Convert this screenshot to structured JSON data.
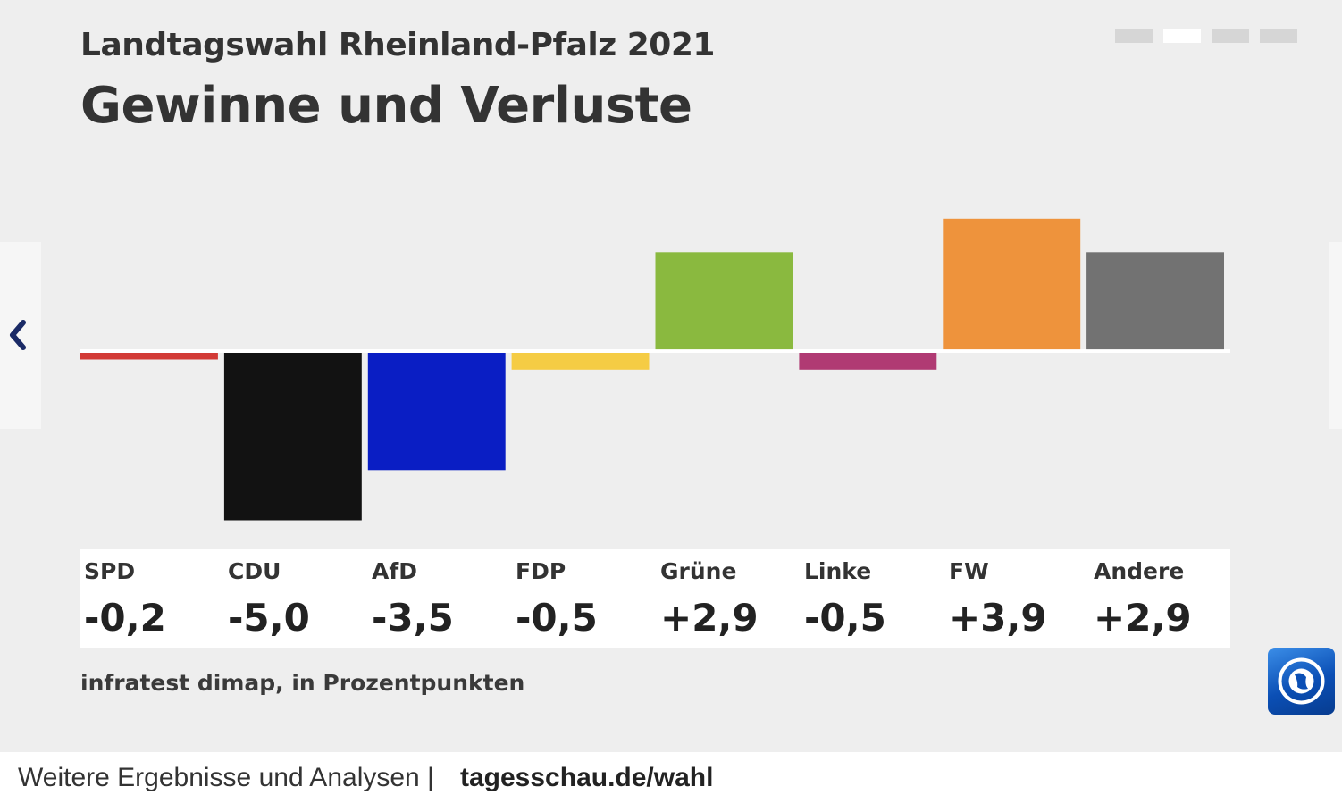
{
  "header": {
    "supertitle": "Landtagswahl Rheinland-Pfalz 2021",
    "title": "Gewinne und Verluste"
  },
  "pager": {
    "count": 4,
    "active_index": 1
  },
  "chart_data": {
    "type": "bar",
    "categories": [
      "SPD",
      "CDU",
      "AfD",
      "FDP",
      "Grüne",
      "Linke",
      "FW",
      "Andere"
    ],
    "values": [
      -0.2,
      -5.0,
      -3.5,
      -0.5,
      2.9,
      -0.5,
      3.9,
      2.9
    ],
    "value_labels": [
      "-0,2",
      "-5,0",
      "-3,5",
      "-0,5",
      "+2,9",
      "-0,5",
      "+3,9",
      "+2,9"
    ],
    "colors": [
      "#d23a36",
      "#121212",
      "#0a1ec4",
      "#f5cc44",
      "#8ab93f",
      "#b03a73",
      "#ee933c",
      "#727272"
    ],
    "ylim": [
      -5.0,
      3.9
    ],
    "grid": false,
    "legend": "none"
  },
  "source": "infratest dimap, in Prozentpunkten",
  "footer": {
    "text": "Weitere Ergebnisse und Analysen |",
    "link": "tagesschau.de/wahl"
  },
  "icons": {
    "prev": "chevron-left-icon",
    "logo": "tagesschau-logo-icon"
  }
}
